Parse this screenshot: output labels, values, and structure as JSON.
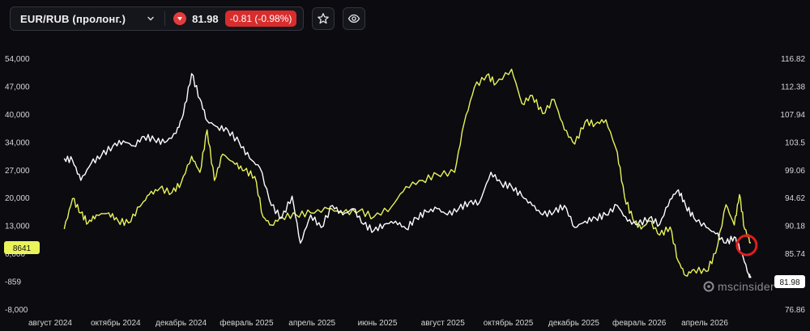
{
  "header": {
    "symbol": "EUR/RUB (пролонг.)",
    "price": "81.98",
    "change": "-0.81 (-0.98%)",
    "down_color": "#e23b3b",
    "icons": {
      "chevron": "chevron-down-icon",
      "direction": "arrow-down-icon",
      "favorite": "star-icon",
      "view": "eye-icon"
    }
  },
  "watermark": "mscinsider",
  "chart_data": {
    "type": "line",
    "x_range": [
      "2024-07",
      "2026-06"
    ],
    "x_tick_labels": [
      "август 2024",
      "октябрь 2024",
      "декабрь 2024",
      "февраль 2025",
      "апрель 2025",
      "июнь 2025",
      "август 2025",
      "октябрь 2025",
      "декабрь 2025",
      "февраль 2026",
      "апрель 2026"
    ],
    "left_axis": {
      "tick_labels": [
        "54,000",
        "47,000",
        "40,000",
        "34,000",
        "27,000",
        "20,000",
        "13,000",
        "6,000",
        "-859",
        "-8,000"
      ],
      "ylim": [
        -8000,
        54000
      ],
      "current_label": "8641",
      "current_value": 8641
    },
    "right_axis": {
      "tick_labels": [
        "116.82",
        "112.38",
        "107.94",
        "103.5",
        "99.06",
        "94.62",
        "90.18",
        "85.74",
        "81.98",
        "76.86"
      ],
      "ylim": [
        76.86,
        116.82
      ],
      "current_label": "81.98",
      "current_value": 81.98
    },
    "grid": false,
    "series": [
      {
        "color": "#e9f35a",
        "axis": "left",
        "points": [
          [
            "2024-07-20",
            12000
          ],
          [
            "2024-07-28",
            19500
          ],
          [
            "2024-08-05",
            16000
          ],
          [
            "2024-08-12",
            13500
          ],
          [
            "2024-08-20",
            15500
          ],
          [
            "2024-09-01",
            16000
          ],
          [
            "2024-09-10",
            14000
          ],
          [
            "2024-09-20",
            13500
          ],
          [
            "2024-10-01",
            17500
          ],
          [
            "2024-10-10",
            20500
          ],
          [
            "2024-10-20",
            22000
          ],
          [
            "2024-11-01",
            21000
          ],
          [
            "2024-11-10",
            23500
          ],
          [
            "2024-11-20",
            30000
          ],
          [
            "2024-11-28",
            26000
          ],
          [
            "2024-12-05",
            36500
          ],
          [
            "2024-12-12",
            24000
          ],
          [
            "2024-12-20",
            30500
          ],
          [
            "2025-01-01",
            28000
          ],
          [
            "2025-01-10",
            26500
          ],
          [
            "2025-01-20",
            25000
          ],
          [
            "2025-01-28",
            15000
          ],
          [
            "2025-02-05",
            13000
          ],
          [
            "2025-02-15",
            15000
          ],
          [
            "2025-03-01",
            15500
          ],
          [
            "2025-03-15",
            16000
          ],
          [
            "2025-04-01",
            17000
          ],
          [
            "2025-04-15",
            16000
          ],
          [
            "2025-05-01",
            16500
          ],
          [
            "2025-05-15",
            15000
          ],
          [
            "2025-06-01",
            17500
          ],
          [
            "2025-06-15",
            22500
          ],
          [
            "2025-07-01",
            24000
          ],
          [
            "2025-07-15",
            25500
          ],
          [
            "2025-08-01",
            26000
          ],
          [
            "2025-08-10",
            38000
          ],
          [
            "2025-08-20",
            47000
          ],
          [
            "2025-09-01",
            50000
          ],
          [
            "2025-09-10",
            48000
          ],
          [
            "2025-09-25",
            51500
          ],
          [
            "2025-10-05",
            43000
          ],
          [
            "2025-10-15",
            45000
          ],
          [
            "2025-10-25",
            40500
          ],
          [
            "2025-11-05",
            44000
          ],
          [
            "2025-11-15",
            36500
          ],
          [
            "2025-11-25",
            33000
          ],
          [
            "2025-12-05",
            38500
          ],
          [
            "2025-12-15",
            38000
          ],
          [
            "2025-12-25",
            39000
          ],
          [
            "2026-01-05",
            31000
          ],
          [
            "2026-01-12",
            20000
          ],
          [
            "2026-01-20",
            14500
          ],
          [
            "2026-01-28",
            12000
          ],
          [
            "2026-02-05",
            14000
          ],
          [
            "2026-02-15",
            10500
          ],
          [
            "2026-02-25",
            12500
          ],
          [
            "2026-03-05",
            4000
          ],
          [
            "2026-03-12",
            500
          ],
          [
            "2026-03-20",
            2000
          ],
          [
            "2026-04-01",
            1500
          ],
          [
            "2026-04-10",
            6000
          ],
          [
            "2026-04-20",
            18000
          ],
          [
            "2026-04-28",
            13000
          ],
          [
            "2026-05-03",
            20500
          ],
          [
            "2026-05-08",
            12000
          ],
          [
            "2026-05-14",
            8641
          ]
        ]
      },
      {
        "color": "#ffffff",
        "axis": "right",
        "points": [
          [
            "2024-07-20",
            101.0
          ],
          [
            "2024-07-28",
            100.7
          ],
          [
            "2024-08-05",
            97.5
          ],
          [
            "2024-08-15",
            100.2
          ],
          [
            "2024-08-25",
            101.5
          ],
          [
            "2024-09-05",
            103.0
          ],
          [
            "2024-09-15",
            103.8
          ],
          [
            "2024-09-25",
            103.0
          ],
          [
            "2024-10-05",
            104.5
          ],
          [
            "2024-10-15",
            104.0
          ],
          [
            "2024-10-25",
            103.5
          ],
          [
            "2024-11-05",
            105.0
          ],
          [
            "2024-11-12",
            108.0
          ],
          [
            "2024-11-20",
            114.5
          ],
          [
            "2024-11-28",
            110.5
          ],
          [
            "2024-12-05",
            107.0
          ],
          [
            "2024-12-15",
            106.0
          ],
          [
            "2024-12-25",
            105.5
          ],
          [
            "2025-01-05",
            103.5
          ],
          [
            "2025-01-15",
            101.0
          ],
          [
            "2025-01-25",
            99.5
          ],
          [
            "2025-02-05",
            93.5
          ],
          [
            "2025-02-15",
            91.5
          ],
          [
            "2025-02-25",
            95.0
          ],
          [
            "2025-03-05",
            87.5
          ],
          [
            "2025-03-15",
            92.0
          ],
          [
            "2025-03-25",
            90.0
          ],
          [
            "2025-04-05",
            93.5
          ],
          [
            "2025-04-15",
            92.0
          ],
          [
            "2025-04-25",
            93.0
          ],
          [
            "2025-05-05",
            90.5
          ],
          [
            "2025-05-15",
            89.5
          ],
          [
            "2025-05-25",
            90.5
          ],
          [
            "2025-06-05",
            91.0
          ],
          [
            "2025-06-15",
            89.8
          ],
          [
            "2025-06-25",
            91.5
          ],
          [
            "2025-07-05",
            92.5
          ],
          [
            "2025-07-15",
            93.0
          ],
          [
            "2025-07-25",
            92.0
          ],
          [
            "2025-08-05",
            93.0
          ],
          [
            "2025-08-15",
            94.0
          ],
          [
            "2025-08-25",
            94.0
          ],
          [
            "2025-09-05",
            98.8
          ],
          [
            "2025-09-15",
            97.0
          ],
          [
            "2025-09-25",
            96.5
          ],
          [
            "2025-10-05",
            95.0
          ],
          [
            "2025-10-15",
            93.5
          ],
          [
            "2025-10-25",
            92.0
          ],
          [
            "2025-11-05",
            92.5
          ],
          [
            "2025-11-15",
            93.5
          ],
          [
            "2025-11-25",
            90.0
          ],
          [
            "2025-12-05",
            91.0
          ],
          [
            "2025-12-15",
            91.5
          ],
          [
            "2025-12-25",
            92.0
          ],
          [
            "2026-01-05",
            93.5
          ],
          [
            "2026-01-15",
            91.0
          ],
          [
            "2026-01-25",
            90.5
          ],
          [
            "2026-02-05",
            91.5
          ],
          [
            "2026-02-15",
            90.5
          ],
          [
            "2026-02-25",
            94.5
          ],
          [
            "2026-03-05",
            96.0
          ],
          [
            "2026-03-12",
            93.5
          ],
          [
            "2026-03-20",
            91.5
          ],
          [
            "2026-04-01",
            90.0
          ],
          [
            "2026-04-10",
            89.0
          ],
          [
            "2026-04-20",
            87.5
          ],
          [
            "2026-04-28",
            88.5
          ],
          [
            "2026-05-05",
            86.0
          ],
          [
            "2026-05-12",
            82.5
          ],
          [
            "2026-05-14",
            81.98
          ]
        ]
      }
    ],
    "annotations": [
      {
        "type": "circle",
        "date": "2026-05-10",
        "value_left": 8000,
        "color": "#e01e1e"
      }
    ]
  }
}
